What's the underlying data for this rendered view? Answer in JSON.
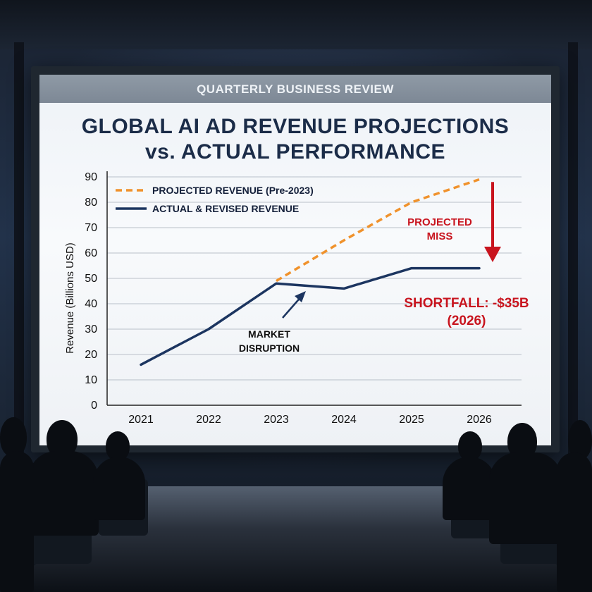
{
  "banner": "QUARTERLY BUSINESS REVIEW",
  "title": "GLOBAL AI AD REVENUE PROJECTIONS\nvs. ACTUAL PERFORMANCE",
  "chart_data": {
    "type": "line",
    "title": "GLOBAL AI AD REVENUE PROJECTIONS vs. ACTUAL PERFORMANCE",
    "xlabel": "",
    "ylabel": "Revenue (Billions USD)",
    "categories": [
      "2021",
      "2022",
      "2023",
      "2024",
      "2025",
      "2026"
    ],
    "ylim": [
      0,
      90
    ],
    "yticks": [
      0,
      10,
      20,
      30,
      40,
      50,
      60,
      70,
      80,
      90
    ],
    "grid": "horizontal",
    "legend_position": "top-left",
    "series": [
      {
        "name": "PROJECTED REVENUE (Pre-2023)",
        "style": "dashed",
        "color": "#f0922c",
        "x": [
          "2023",
          "2024",
          "2025",
          "2026"
        ],
        "values": [
          49,
          65,
          80,
          89
        ]
      },
      {
        "name": "ACTUAL & REVISED REVENUE",
        "style": "solid",
        "color": "#1c3560",
        "x": [
          "2021",
          "2022",
          "2023",
          "2024",
          "2025",
          "2026"
        ],
        "values": [
          16,
          30,
          48,
          46,
          54,
          54
        ]
      }
    ],
    "annotations": {
      "disruption": "MARKET\nDISRUPTION",
      "miss": "PROJECTED\nMISS",
      "shortfall": "SHORTFALL: -$35B\n(2026)"
    },
    "annotation_colors": {
      "dark": "#1c3560",
      "red": "#c8141e"
    }
  }
}
